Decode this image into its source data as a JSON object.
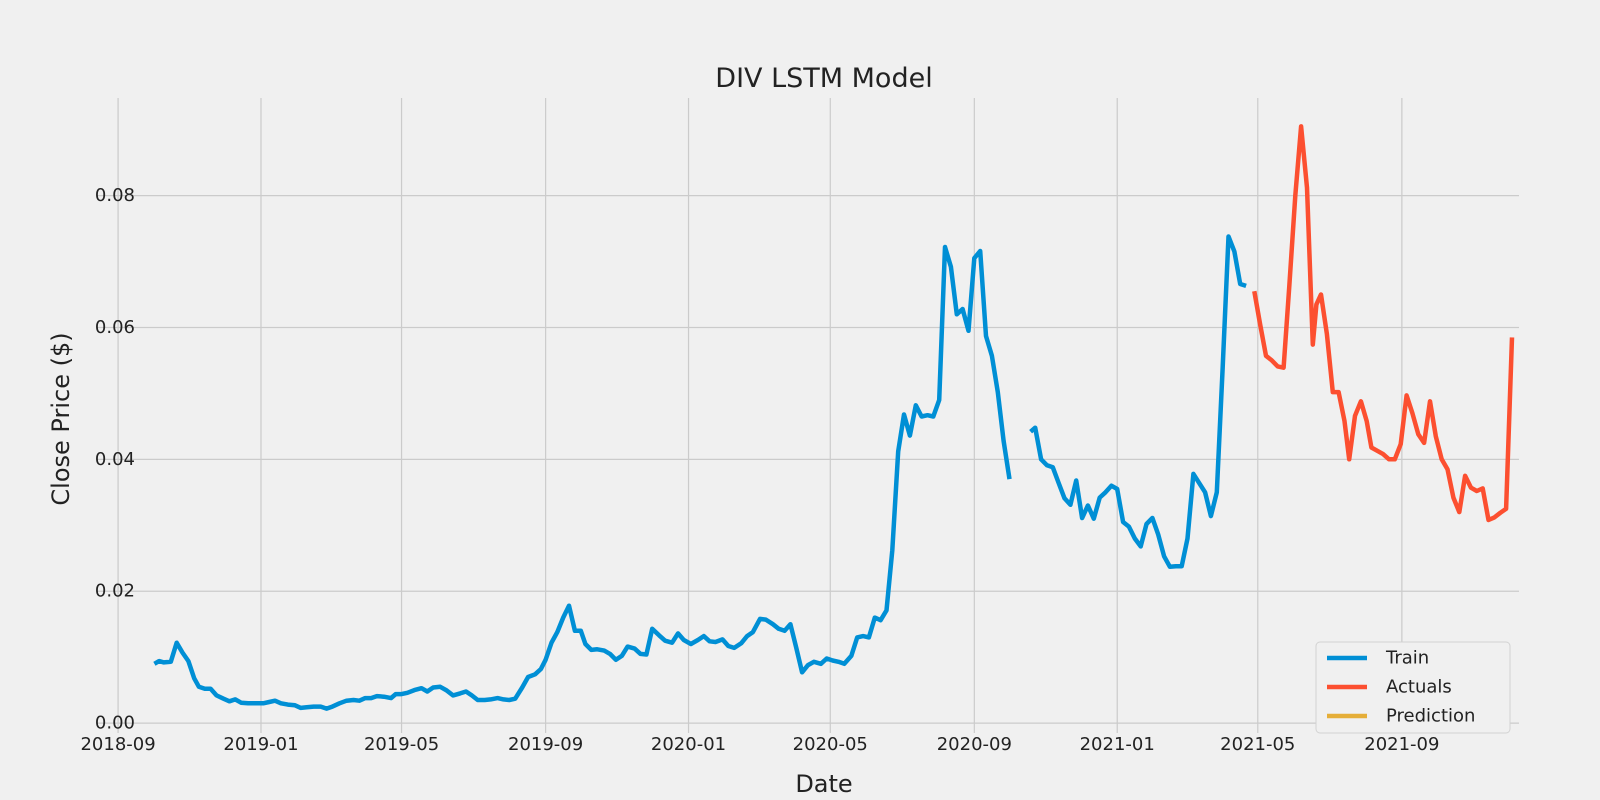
{
  "chart_data": {
    "type": "line",
    "title": "DIV LSTM Model",
    "xlabel": "Date",
    "ylabel": "Close Price ($)",
    "x_ticks": [
      "2018-09",
      "2019-01",
      "2019-05",
      "2019-09",
      "2020-01",
      "2020-05",
      "2020-09",
      "2021-01",
      "2021-05",
      "2021-09"
    ],
    "y_ticks": [
      "0.00",
      "0.02",
      "0.04",
      "0.06",
      "0.08"
    ],
    "xlim": [
      "2018-08-14",
      "2021-12-10"
    ],
    "ylim": [
      -0.0015,
      0.0948
    ],
    "grid": true,
    "legend_position": "bottom-right",
    "colors": {
      "Train": "#008fd5",
      "Actuals": "#fc4f30",
      "Prediction": "#e5ae38",
      "background": "#f0f0f0",
      "grid": "#cbcbcb"
    },
    "series": [
      {
        "name": "Train",
        "segments": [
          [
            [
              "2018-10-02",
              0.009
            ],
            [
              "2018-10-06",
              0.0094
            ],
            [
              "2018-10-10",
              0.0092
            ],
            [
              "2018-10-16",
              0.0093
            ],
            [
              "2018-10-21",
              0.0122
            ],
            [
              "2018-10-26",
              0.0107
            ],
            [
              "2018-10-31",
              0.0094
            ],
            [
              "2018-11-05",
              0.0068
            ],
            [
              "2018-11-09",
              0.0055
            ],
            [
              "2018-11-14",
              0.0052
            ],
            [
              "2018-11-19",
              0.0052
            ],
            [
              "2018-11-24",
              0.0042
            ],
            [
              "2018-11-30",
              0.0037
            ],
            [
              "2018-12-05",
              0.0033
            ],
            [
              "2018-12-10",
              0.0036
            ],
            [
              "2018-12-15",
              0.0031
            ],
            [
              "2018-12-21",
              0.003
            ],
            [
              "2018-12-27",
              0.003
            ],
            [
              "2019-01-03",
              0.003
            ],
            [
              "2019-01-08",
              0.0032
            ],
            [
              "2019-01-13",
              0.0034
            ],
            [
              "2019-01-18",
              0.003
            ],
            [
              "2019-01-24",
              0.0028
            ],
            [
              "2019-01-30",
              0.0027
            ],
            [
              "2019-02-04",
              0.0023
            ],
            [
              "2019-02-09",
              0.0024
            ],
            [
              "2019-02-15",
              0.0025
            ],
            [
              "2019-02-21",
              0.0025
            ],
            [
              "2019-02-26",
              0.0022
            ],
            [
              "2019-03-03",
              0.0025
            ],
            [
              "2019-03-09",
              0.003
            ],
            [
              "2019-03-15",
              0.0034
            ],
            [
              "2019-03-21",
              0.0035
            ],
            [
              "2019-03-26",
              0.0034
            ],
            [
              "2019-03-31",
              0.0038
            ],
            [
              "2019-04-05",
              0.0038
            ],
            [
              "2019-04-10",
              0.0041
            ],
            [
              "2019-04-16",
              0.004
            ],
            [
              "2019-04-22",
              0.0038
            ],
            [
              "2019-04-26",
              0.0044
            ],
            [
              "2019-05-01",
              0.0044
            ],
            [
              "2019-05-06",
              0.0046
            ],
            [
              "2019-05-12",
              0.005
            ],
            [
              "2019-05-18",
              0.0053
            ],
            [
              "2019-05-23",
              0.0048
            ],
            [
              "2019-05-28",
              0.0054
            ],
            [
              "2019-06-03",
              0.0055
            ],
            [
              "2019-06-08",
              0.005
            ],
            [
              "2019-06-14",
              0.0042
            ],
            [
              "2019-06-20",
              0.0045
            ],
            [
              "2019-06-25",
              0.0048
            ],
            [
              "2019-06-30",
              0.0042
            ],
            [
              "2019-07-05",
              0.0035
            ],
            [
              "2019-07-11",
              0.0035
            ],
            [
              "2019-07-16",
              0.0036
            ],
            [
              "2019-07-22",
              0.0038
            ],
            [
              "2019-07-27",
              0.0036
            ],
            [
              "2019-08-01",
              0.0035
            ],
            [
              "2019-08-06",
              0.0037
            ],
            [
              "2019-08-12",
              0.0054
            ],
            [
              "2019-08-17",
              0.007
            ],
            [
              "2019-08-23",
              0.0074
            ],
            [
              "2019-08-28",
              0.0082
            ],
            [
              "2019-09-01",
              0.0096
            ],
            [
              "2019-09-06",
              0.0122
            ],
            [
              "2019-09-11",
              0.0138
            ],
            [
              "2019-09-16",
              0.016
            ],
            [
              "2019-09-21",
              0.0178
            ],
            [
              "2019-09-26",
              0.014
            ],
            [
              "2019-10-01",
              0.014
            ],
            [
              "2019-10-05",
              0.012
            ],
            [
              "2019-10-10",
              0.0111
            ],
            [
              "2019-10-15",
              0.0112
            ],
            [
              "2019-10-21",
              0.011
            ],
            [
              "2019-10-26",
              0.0105
            ],
            [
              "2019-10-31",
              0.0096
            ],
            [
              "2019-11-05",
              0.0102
            ],
            [
              "2019-11-10",
              0.0116
            ],
            [
              "2019-11-16",
              0.0113
            ],
            [
              "2019-11-21",
              0.0105
            ],
            [
              "2019-11-26",
              0.0104
            ],
            [
              "2019-12-01",
              0.0143
            ],
            [
              "2019-12-07",
              0.0133
            ],
            [
              "2019-12-12",
              0.0125
            ],
            [
              "2019-12-18",
              0.0122
            ],
            [
              "2019-12-23",
              0.0136
            ],
            [
              "2019-12-28",
              0.0126
            ],
            [
              "2020-01-03",
              0.012
            ],
            [
              "2020-01-09",
              0.0126
            ],
            [
              "2020-01-14",
              0.0132
            ],
            [
              "2020-01-19",
              0.0124
            ],
            [
              "2020-01-24",
              0.0123
            ],
            [
              "2020-01-30",
              0.0127
            ],
            [
              "2020-02-04",
              0.0117
            ],
            [
              "2020-02-09",
              0.0114
            ],
            [
              "2020-02-15",
              0.0121
            ],
            [
              "2020-02-20",
              0.0132
            ],
            [
              "2020-02-25",
              0.0138
            ],
            [
              "2020-03-02",
              0.0158
            ],
            [
              "2020-03-07",
              0.0157
            ],
            [
              "2020-03-13",
              0.015
            ],
            [
              "2020-03-18",
              0.0143
            ],
            [
              "2020-03-23",
              0.014
            ],
            [
              "2020-03-28",
              0.015
            ],
            [
              "2020-04-02",
              0.0114
            ],
            [
              "2020-04-07",
              0.0077
            ],
            [
              "2020-04-12",
              0.0088
            ],
            [
              "2020-04-17",
              0.0093
            ],
            [
              "2020-04-23",
              0.009
            ],
            [
              "2020-04-28",
              0.0098
            ],
            [
              "2020-05-03",
              0.0095
            ],
            [
              "2020-05-08",
              0.0093
            ],
            [
              "2020-05-13",
              0.009
            ],
            [
              "2020-05-19",
              0.0102
            ],
            [
              "2020-05-24",
              0.013
            ],
            [
              "2020-05-29",
              0.0132
            ],
            [
              "2020-06-03",
              0.013
            ],
            [
              "2020-06-08",
              0.016
            ],
            [
              "2020-06-13",
              0.0156
            ],
            [
              "2020-06-18",
              0.0171
            ],
            [
              "2020-06-23",
              0.0262
            ],
            [
              "2020-06-28",
              0.0412
            ],
            [
              "2020-07-03",
              0.0468
            ],
            [
              "2020-07-08",
              0.0436
            ],
            [
              "2020-07-13",
              0.0482
            ],
            [
              "2020-07-18",
              0.0465
            ],
            [
              "2020-07-23",
              0.0467
            ],
            [
              "2020-07-28",
              0.0465
            ],
            [
              "2020-08-02",
              0.049
            ],
            [
              "2020-08-07",
              0.0722
            ],
            [
              "2020-08-12",
              0.0692
            ],
            [
              "2020-08-17",
              0.062
            ],
            [
              "2020-08-22",
              0.0628
            ],
            [
              "2020-08-27",
              0.0595
            ],
            [
              "2020-09-01",
              0.0705
            ],
            [
              "2020-09-06",
              0.0716
            ],
            [
              "2020-09-11",
              0.0587
            ],
            [
              "2020-09-16",
              0.0557
            ],
            [
              "2020-09-21",
              0.0502
            ],
            [
              "2020-09-26",
              0.0428
            ],
            [
              "2020-10-01",
              0.037
            ]
          ],
          [
            [
              "2020-10-19",
              0.0442
            ],
            [
              "2020-10-23",
              0.0448
            ],
            [
              "2020-10-28",
              0.04
            ],
            [
              "2020-11-02",
              0.0391
            ],
            [
              "2020-11-07",
              0.0388
            ],
            [
              "2020-11-12",
              0.0364
            ],
            [
              "2020-11-17",
              0.0341
            ],
            [
              "2020-11-22",
              0.0331
            ],
            [
              "2020-11-27",
              0.0368
            ],
            [
              "2020-12-02",
              0.0311
            ],
            [
              "2020-12-07",
              0.033
            ],
            [
              "2020-12-12",
              0.031
            ],
            [
              "2020-12-17",
              0.0342
            ],
            [
              "2020-12-22",
              0.035
            ],
            [
              "2020-12-27",
              0.036
            ],
            [
              "2021-01-01",
              0.0355
            ],
            [
              "2021-01-06",
              0.0305
            ],
            [
              "2021-01-11",
              0.0298
            ],
            [
              "2021-01-16",
              0.028
            ],
            [
              "2021-01-21",
              0.0268
            ],
            [
              "2021-01-26",
              0.0302
            ],
            [
              "2021-01-31",
              0.0311
            ],
            [
              "2021-02-05",
              0.0286
            ],
            [
              "2021-02-10",
              0.0253
            ],
            [
              "2021-02-15",
              0.0237
            ],
            [
              "2021-02-20",
              0.0238
            ],
            [
              "2021-02-25",
              0.0238
            ],
            [
              "2021-03-02",
              0.028
            ],
            [
              "2021-03-07",
              0.0378
            ],
            [
              "2021-03-12",
              0.0364
            ],
            [
              "2021-03-17",
              0.035
            ],
            [
              "2021-03-22",
              0.0314
            ],
            [
              "2021-03-27",
              0.035
            ],
            [
              "2021-04-01",
              0.054
            ],
            [
              "2021-04-06",
              0.0738
            ],
            [
              "2021-04-11",
              0.0715
            ],
            [
              "2021-04-16",
              0.0666
            ],
            [
              "2021-04-21",
              0.0663
            ]
          ]
        ]
      },
      {
        "name": "Actuals",
        "segments": [
          [
            [
              "2021-04-28",
              0.0655
            ],
            [
              "2021-05-03",
              0.0605
            ],
            [
              "2021-05-08",
              0.0557
            ],
            [
              "2021-05-13",
              0.055
            ],
            [
              "2021-05-18",
              0.0541
            ],
            [
              "2021-05-23",
              0.0539
            ],
            [
              "2021-05-28",
              0.0665
            ],
            [
              "2021-06-02",
              0.08
            ],
            [
              "2021-06-07",
              0.0905
            ],
            [
              "2021-06-12",
              0.0812
            ],
            [
              "2021-06-17",
              0.0574
            ],
            [
              "2021-06-20",
              0.0635
            ],
            [
              "2021-06-24",
              0.065
            ],
            [
              "2021-06-29",
              0.059
            ],
            [
              "2021-07-04",
              0.0502
            ],
            [
              "2021-07-09",
              0.0502
            ],
            [
              "2021-07-14",
              0.0458
            ],
            [
              "2021-07-18",
              0.04
            ],
            [
              "2021-07-23",
              0.0466
            ],
            [
              "2021-07-28",
              0.0488
            ],
            [
              "2021-08-02",
              0.0458
            ],
            [
              "2021-08-06",
              0.0418
            ],
            [
              "2021-08-11",
              0.0413
            ],
            [
              "2021-08-16",
              0.0408
            ],
            [
              "2021-08-21",
              0.04
            ],
            [
              "2021-08-26",
              0.04
            ],
            [
              "2021-08-31",
              0.0423
            ],
            [
              "2021-09-05",
              0.0497
            ],
            [
              "2021-09-10",
              0.047
            ],
            [
              "2021-09-15",
              0.0438
            ],
            [
              "2021-09-20",
              0.0425
            ],
            [
              "2021-09-25",
              0.0488
            ],
            [
              "2021-09-30",
              0.0435
            ],
            [
              "2021-10-05",
              0.04
            ],
            [
              "2021-10-10",
              0.0385
            ],
            [
              "2021-10-15",
              0.0342
            ],
            [
              "2021-10-20",
              0.032
            ],
            [
              "2021-10-25",
              0.0375
            ],
            [
              "2021-10-30",
              0.0357
            ],
            [
              "2021-11-04",
              0.0352
            ],
            [
              "2021-11-09",
              0.0356
            ],
            [
              "2021-11-14",
              0.0308
            ],
            [
              "2021-11-19",
              0.0312
            ],
            [
              "2021-11-24",
              0.0319
            ],
            [
              "2021-11-29",
              0.0325
            ],
            [
              "2021-12-04",
              0.0585
            ]
          ]
        ]
      },
      {
        "name": "Prediction",
        "segments": []
      }
    ]
  }
}
